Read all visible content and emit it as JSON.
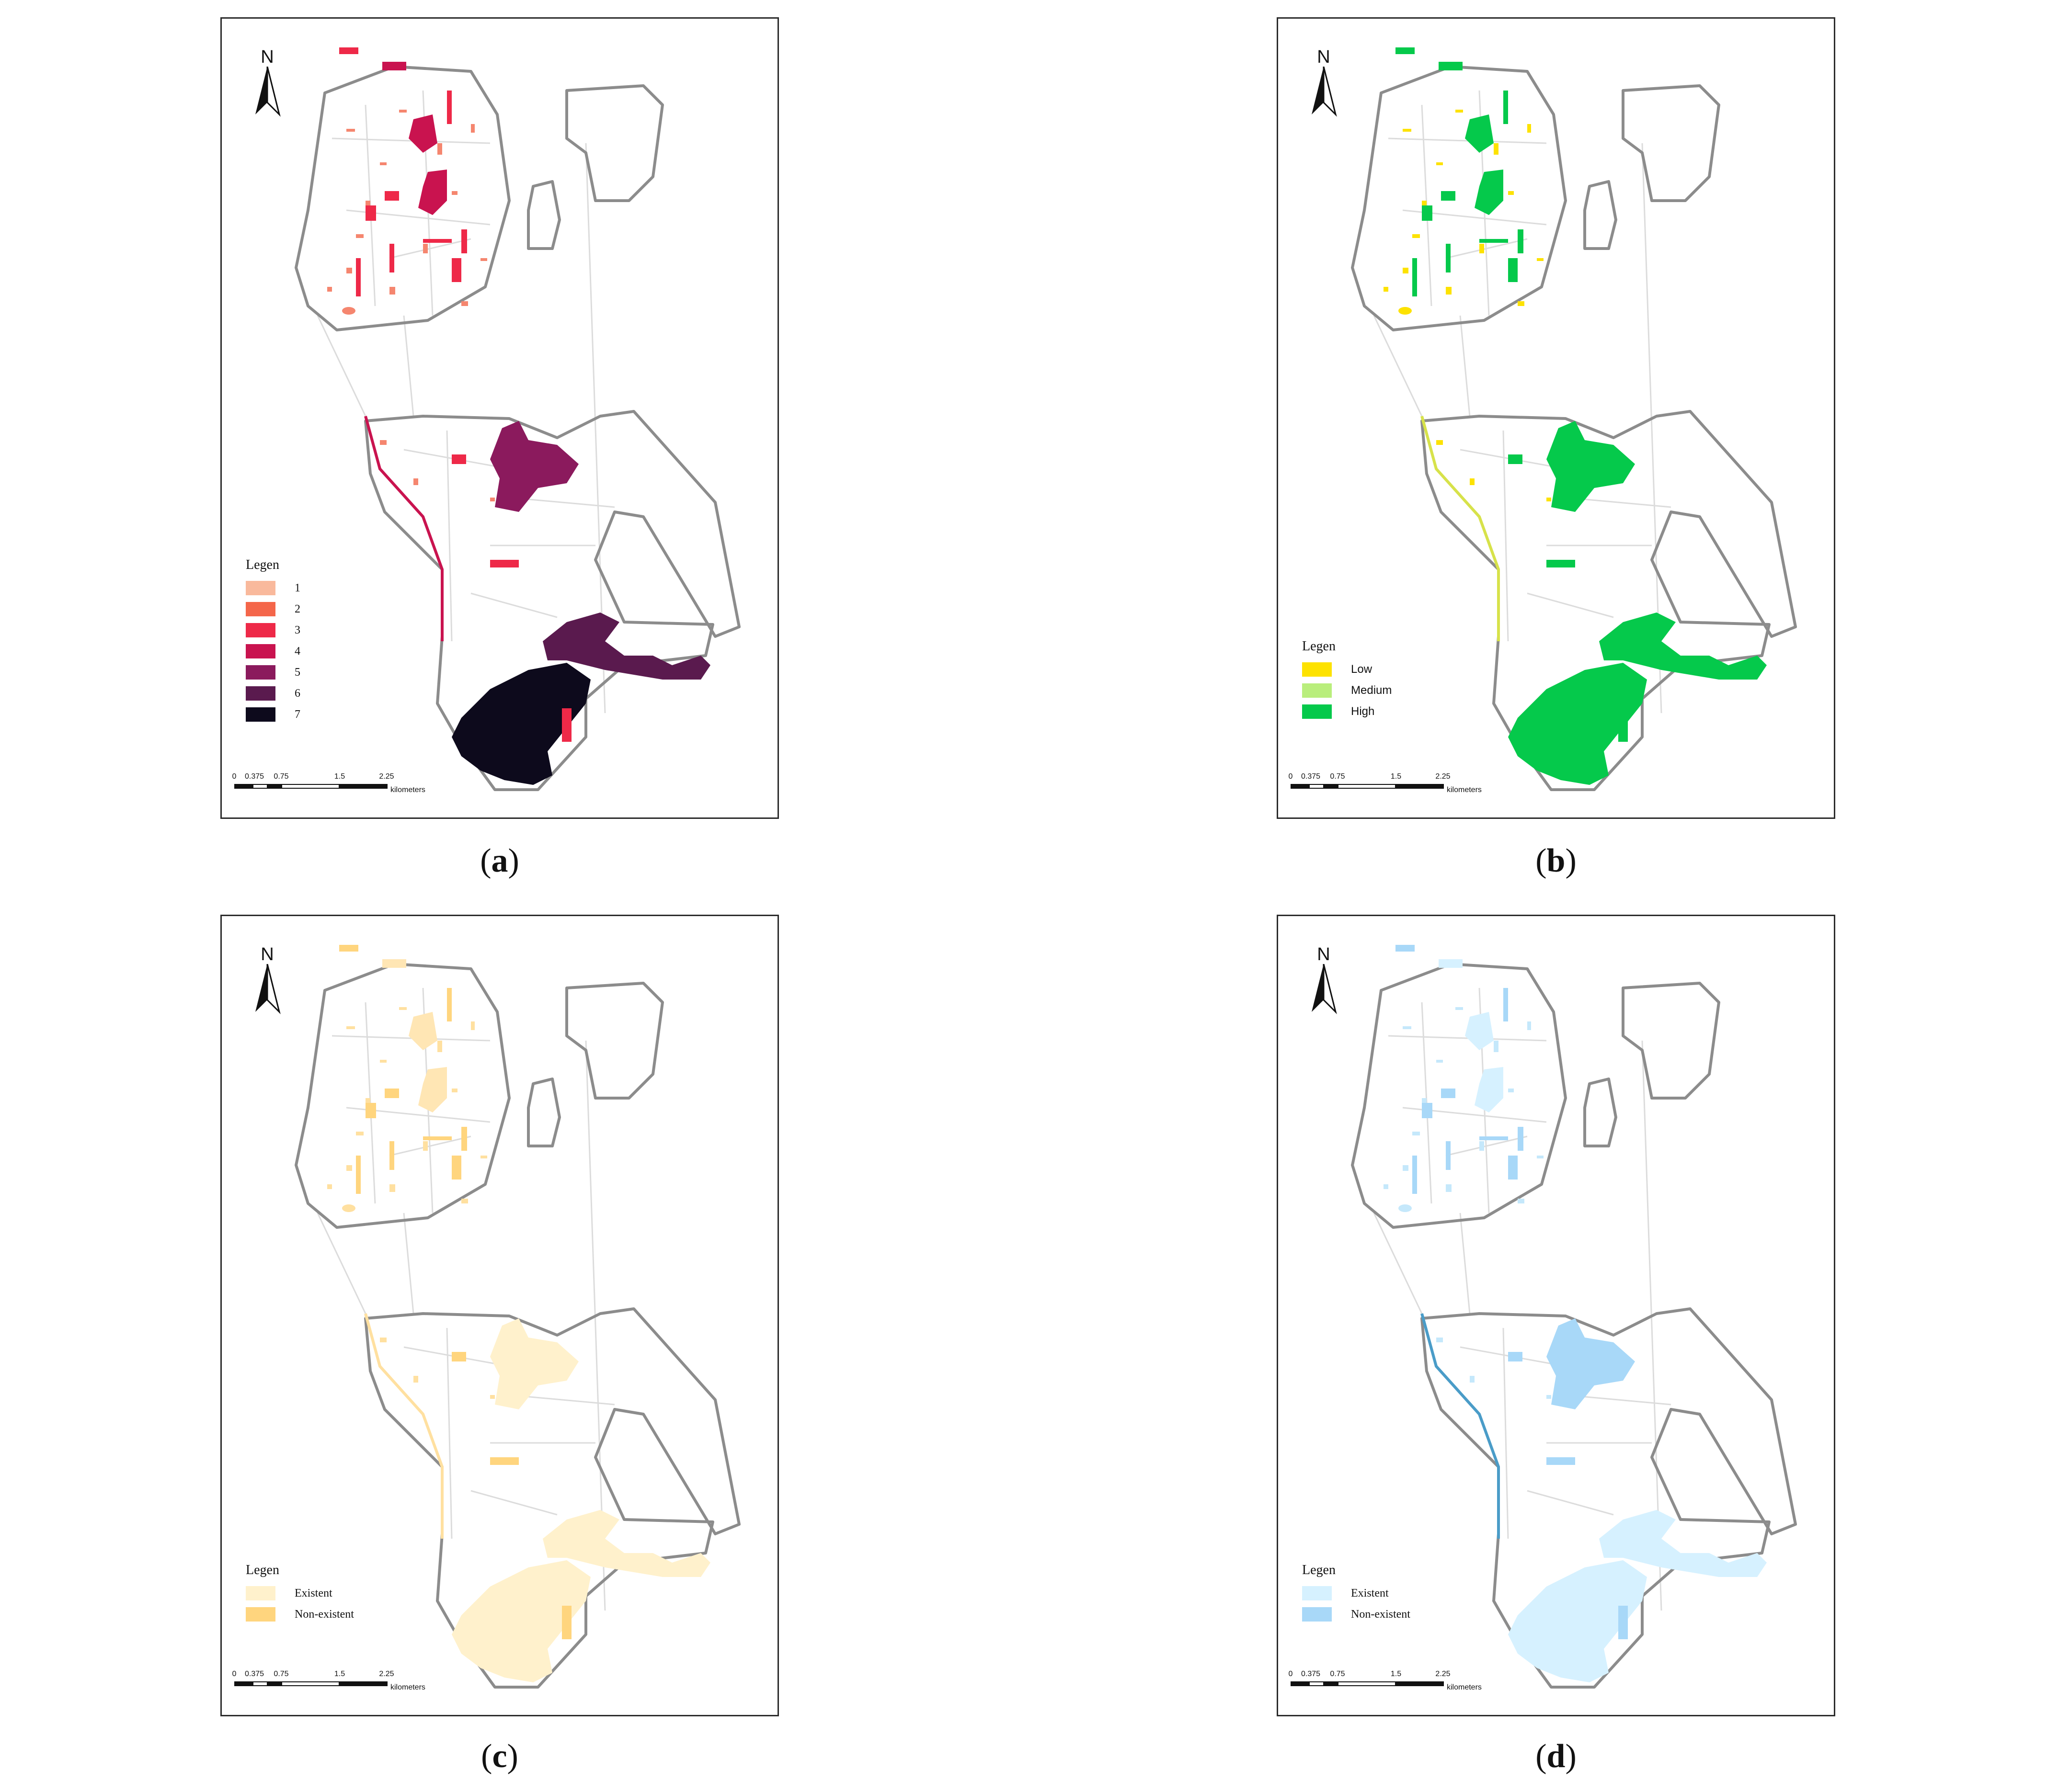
{
  "north_label": "N",
  "scale": {
    "ticks": [
      "0",
      "0.375",
      "0.75",
      "1.5",
      "2.25"
    ],
    "unit": "kilometers"
  },
  "panels": [
    {
      "id": "a",
      "caption_open": "(",
      "caption_letter": "a",
      "caption_close": ")",
      "legend_title": "Legen",
      "legend": [
        {
          "label": "1",
          "color": "#f9b99c"
        },
        {
          "label": "2",
          "color": "#f4664a"
        },
        {
          "label": "3",
          "color": "#ee2948"
        },
        {
          "label": "4",
          "color": "#c9134f"
        },
        {
          "label": "5",
          "color": "#8b1a5d"
        },
        {
          "label": "6",
          "color": "#5a1a4e"
        },
        {
          "label": "7",
          "color": "#0d0a1c"
        }
      ],
      "fills": {
        "small": "#f5866f",
        "mid": "#ee2948",
        "top": "#c9134f",
        "park": "#8b1a5d",
        "east": "#5a1a4e",
        "south": "#0d0a1c",
        "edge": "#c9134f"
      }
    },
    {
      "id": "b",
      "caption_open": "(",
      "caption_letter": "b",
      "caption_close": ")",
      "legend_title": "Legen",
      "legend": [
        {
          "label": "Low",
          "color": "#fde200"
        },
        {
          "label": "Medium",
          "color": "#b9ee7c"
        },
        {
          "label": "High",
          "color": "#05c94b"
        }
      ],
      "fills": {
        "small": "#fde200",
        "mid": "#05c94b",
        "top": "#05c94b",
        "park": "#05c94b",
        "east": "#05c94b",
        "south": "#05c94b",
        "edge": "#d7e24a"
      }
    },
    {
      "id": "c",
      "caption_open": "(",
      "caption_letter": "c",
      "caption_close": ")",
      "legend_title": "Legen",
      "legend": [
        {
          "label": "Existent",
          "color": "#fff1cc"
        },
        {
          "label": "Non-existent",
          "color": "#ffd57e"
        }
      ],
      "fills": {
        "small": "#ffe0a0",
        "mid": "#ffd57e",
        "top": "#ffe6b4",
        "park": "#fff1cc",
        "east": "#fff1cc",
        "south": "#fff1cc",
        "edge": "#ffe0a0"
      }
    },
    {
      "id": "d",
      "caption_open": "(",
      "caption_letter": "d",
      "caption_close": ")",
      "legend_title": "Legen",
      "legend": [
        {
          "label": "Existent",
          "color": "#d6f1ff"
        },
        {
          "label": "Non-existent",
          "color": "#a8d8f8"
        }
      ],
      "fills": {
        "small": "#c5e8fb",
        "mid": "#a8d8f8",
        "top": "#d6f1ff",
        "park": "#a8d8f8",
        "east": "#d6f1ff",
        "south": "#d6f1ff",
        "edge": "#4a9cc8"
      }
    }
  ]
}
